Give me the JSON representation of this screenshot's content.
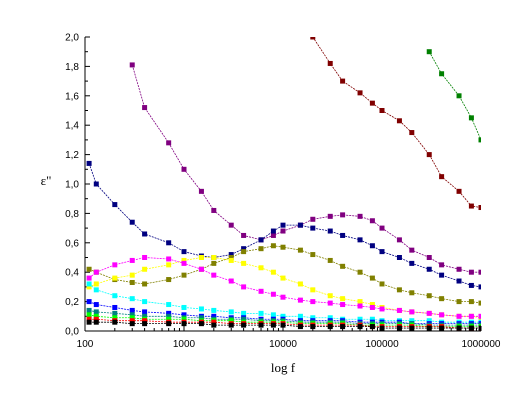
{
  "chart_data": {
    "type": "scatter",
    "xlabel": "log f",
    "ylabel": "ε\"",
    "x_scale": "log",
    "xlim": [
      100,
      1000000
    ],
    "ylim": [
      0,
      2.0
    ],
    "x_tick_labels": [
      "100",
      "1000",
      "10000",
      "100000",
      "1000000"
    ],
    "y_tick_labels": [
      "0,0",
      "0,2",
      "0,4",
      "0,6",
      "0,8",
      "1,0",
      "1,2",
      "1,4",
      "1,6",
      "1,8",
      "2,0"
    ],
    "x": [
      110,
      130,
      200,
      300,
      400,
      700,
      1000,
      1500,
      2000,
      3000,
      4000,
      6000,
      8000,
      10000,
      15000,
      20000,
      30000,
      40000,
      60000,
      80000,
      100000,
      150000,
      200000,
      300000,
      400000,
      600000,
      800000,
      1000000
    ],
    "grid": false,
    "legend": "none",
    "series": [
      {
        "color": "#008000",
        "values": [
          null,
          null,
          null,
          null,
          null,
          null,
          null,
          null,
          null,
          null,
          null,
          null,
          null,
          null,
          null,
          null,
          null,
          null,
          null,
          null,
          null,
          null,
          null,
          1.9,
          1.75,
          1.6,
          1.45,
          1.3
        ]
      },
      {
        "color": "#800000",
        "values": [
          null,
          null,
          null,
          null,
          null,
          null,
          null,
          null,
          null,
          null,
          null,
          null,
          null,
          null,
          null,
          2.0,
          1.82,
          1.7,
          1.62,
          1.55,
          1.5,
          1.43,
          1.35,
          1.2,
          1.05,
          0.95,
          0.85,
          0.84
        ]
      },
      {
        "color": "#800080",
        "values": [
          null,
          null,
          null,
          1.81,
          1.52,
          1.28,
          1.1,
          0.95,
          0.82,
          0.72,
          0.65,
          0.62,
          0.65,
          0.68,
          0.72,
          0.76,
          0.78,
          0.79,
          0.78,
          0.75,
          0.7,
          0.62,
          0.55,
          0.5,
          0.45,
          0.42,
          0.4,
          0.4
        ]
      },
      {
        "color": "#000080",
        "values": [
          1.14,
          1.0,
          0.86,
          0.74,
          0.66,
          0.6,
          0.54,
          0.51,
          0.5,
          0.52,
          0.56,
          0.62,
          0.68,
          0.72,
          0.72,
          0.7,
          0.68,
          0.65,
          0.62,
          0.58,
          0.54,
          0.5,
          0.46,
          0.42,
          0.38,
          0.34,
          0.31,
          0.3
        ]
      },
      {
        "color": "#808000",
        "values": [
          0.42,
          0.4,
          0.35,
          0.33,
          0.32,
          0.35,
          0.38,
          0.42,
          0.46,
          0.5,
          0.54,
          0.56,
          0.58,
          0.57,
          0.55,
          0.52,
          0.48,
          0.44,
          0.4,
          0.36,
          0.32,
          0.28,
          0.26,
          0.24,
          0.22,
          0.2,
          0.2,
          0.19
        ]
      },
      {
        "color": "#FFFF00",
        "values": [
          0.3,
          0.32,
          0.36,
          0.38,
          0.42,
          0.45,
          0.48,
          0.5,
          0.5,
          0.48,
          0.46,
          0.43,
          0.4,
          0.36,
          0.32,
          0.28,
          0.24,
          0.22,
          0.2,
          0.18,
          0.16,
          0.14,
          0.13,
          0.12,
          0.11,
          0.1,
          0.1,
          0.09
        ]
      },
      {
        "color": "#FF00FF",
        "values": [
          0.36,
          0.4,
          0.45,
          0.48,
          0.5,
          0.49,
          0.46,
          0.42,
          0.38,
          0.34,
          0.3,
          0.27,
          0.25,
          0.23,
          0.21,
          0.2,
          0.19,
          0.18,
          0.17,
          0.16,
          0.15,
          0.14,
          0.13,
          0.12,
          0.11,
          0.1,
          0.1,
          0.1
        ]
      },
      {
        "color": "#00FFFF",
        "values": [
          0.32,
          0.28,
          0.24,
          0.22,
          0.2,
          0.18,
          0.16,
          0.15,
          0.14,
          0.13,
          0.12,
          0.12,
          0.11,
          0.1,
          0.1,
          0.09,
          0.09,
          0.08,
          0.08,
          0.08,
          0.07,
          0.07,
          0.07,
          0.07,
          0.06,
          0.06,
          0.06,
          0.06
        ]
      },
      {
        "color": "#0000FF",
        "values": [
          0.2,
          0.18,
          0.16,
          0.14,
          0.13,
          0.12,
          0.11,
          0.1,
          0.1,
          0.09,
          0.09,
          0.08,
          0.08,
          0.08,
          0.07,
          0.07,
          0.07,
          0.07,
          0.06,
          0.06,
          0.06,
          0.06,
          0.05,
          0.05,
          0.05,
          0.05,
          0.05,
          0.05
        ]
      },
      {
        "color": "#008080",
        "values": [
          0.14,
          0.13,
          0.12,
          0.11,
          0.1,
          0.1,
          0.09,
          0.09,
          0.08,
          0.08,
          0.08,
          0.07,
          0.07,
          0.07,
          0.06,
          0.06,
          0.06,
          0.06,
          0.05,
          0.05,
          0.05,
          0.05,
          0.05,
          0.04,
          0.04,
          0.04,
          0.04,
          0.04
        ]
      },
      {
        "color": "#00FF00",
        "values": [
          0.11,
          0.1,
          0.09,
          0.09,
          0.08,
          0.08,
          0.08,
          0.07,
          0.07,
          0.07,
          0.06,
          0.06,
          0.06,
          0.06,
          0.05,
          0.05,
          0.05,
          0.05,
          0.04,
          0.04,
          0.04,
          0.04,
          0.04,
          0.03,
          0.03,
          0.03,
          0.03,
          0.03
        ]
      },
      {
        "color": "#FF0000",
        "values": [
          0.08,
          0.08,
          0.07,
          0.07,
          0.07,
          0.06,
          0.06,
          0.06,
          0.06,
          0.05,
          0.05,
          0.05,
          0.05,
          0.05,
          0.04,
          0.04,
          0.04,
          0.04,
          0.04,
          0.03,
          0.03,
          0.03,
          0.03,
          0.03,
          0.03,
          0.02,
          0.02,
          0.02
        ]
      },
      {
        "color": "#000000",
        "values": [
          0.06,
          0.06,
          0.06,
          0.05,
          0.05,
          0.05,
          0.05,
          0.05,
          0.04,
          0.04,
          0.04,
          0.04,
          0.04,
          0.04,
          0.03,
          0.03,
          0.03,
          0.03,
          0.03,
          0.03,
          0.02,
          0.02,
          0.02,
          0.02,
          0.02,
          0.02,
          0.02,
          0.02
        ]
      }
    ]
  }
}
